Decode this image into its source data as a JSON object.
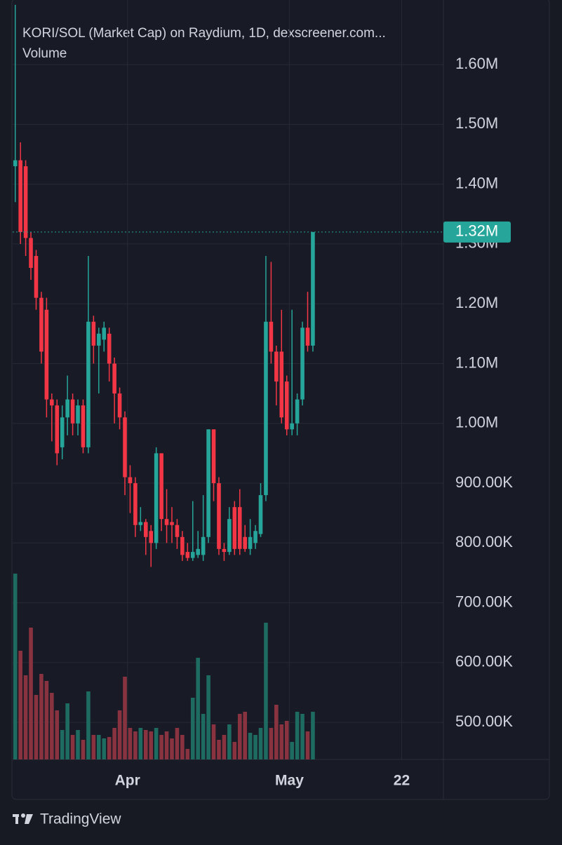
{
  "chart_data": {
    "type": "candlestick",
    "title": "KORI/SOL (Market Cap) on Raydium, 1D, dexscreener.com...",
    "subtitle": "Volume",
    "brand": "TradingView",
    "categories": [
      null,
      null,
      null,
      null,
      null,
      null,
      null,
      null,
      null,
      null,
      null,
      null,
      null,
      null,
      null,
      null,
      null,
      null,
      null,
      null,
      null,
      null,
      null,
      null,
      null,
      null,
      null,
      null,
      null,
      null,
      null,
      null,
      null,
      null,
      null,
      null,
      null,
      null,
      null,
      null,
      null,
      null,
      null,
      null,
      null,
      null,
      null,
      null,
      null,
      null,
      null,
      null,
      null,
      null,
      null,
      null,
      null,
      null
    ],
    "open": [
      1430000,
      1440000,
      1430000,
      1310000,
      1280000,
      1210000,
      1190000,
      1040000,
      1030000,
      960000,
      1010000,
      1040000,
      1000000,
      1030000,
      960000,
      1170000,
      1130000,
      1140000,
      1150000,
      1100000,
      1050000,
      1010000,
      910000,
      900000,
      830000,
      835000,
      820000,
      800000,
      950000,
      840000,
      835000,
      830000,
      810000,
      785000,
      775000,
      780000,
      780000,
      810000,
      990000,
      900000,
      790000,
      785000,
      860000,
      860000,
      810000,
      790000,
      800000,
      815000,
      880000,
      1170000,
      1120000,
      1120000,
      1070000,
      990000,
      1000000,
      1040000,
      1160000,
      1130000
    ],
    "high": [
      1700000,
      1470000,
      1440000,
      1320000,
      1290000,
      1220000,
      1210000,
      1050000,
      1040000,
      1030000,
      1080000,
      1050000,
      1040000,
      1040000,
      1280000,
      1180000,
      1160000,
      1170000,
      1160000,
      1110000,
      1060000,
      1020000,
      930000,
      910000,
      860000,
      840000,
      830000,
      960000,
      950000,
      890000,
      860000,
      840000,
      820000,
      800000,
      870000,
      820000,
      880000,
      990000,
      990000,
      910000,
      800000,
      860000,
      870000,
      890000,
      830000,
      840000,
      830000,
      900000,
      1280000,
      1270000,
      1130000,
      1190000,
      1080000,
      1190000,
      1050000,
      1170000,
      1220000,
      1320000
    ],
    "low": [
      1370000,
      1300000,
      1280000,
      1240000,
      1190000,
      1100000,
      1010000,
      970000,
      930000,
      940000,
      980000,
      980000,
      980000,
      950000,
      950000,
      1100000,
      1050000,
      1120000,
      1070000,
      1000000,
      990000,
      880000,
      850000,
      810000,
      820000,
      780000,
      760000,
      790000,
      820000,
      800000,
      800000,
      790000,
      770000,
      770000,
      770000,
      775000,
      770000,
      800000,
      870000,
      780000,
      770000,
      780000,
      780000,
      780000,
      785000,
      780000,
      790000,
      810000,
      870000,
      1100000,
      1030000,
      1000000,
      980000,
      980000,
      980000,
      1030000,
      1120000,
      1120000
    ],
    "close": [
      1440000,
      1320000,
      1310000,
      1260000,
      1210000,
      1120000,
      1040000,
      1030000,
      950000,
      1010000,
      1040000,
      1000000,
      1030000,
      960000,
      1170000,
      1130000,
      1150000,
      1160000,
      1100000,
      1050000,
      1010000,
      910000,
      900000,
      830000,
      835000,
      810000,
      800000,
      950000,
      840000,
      830000,
      830000,
      810000,
      780000,
      775000,
      785000,
      790000,
      810000,
      990000,
      900000,
      790000,
      785000,
      840000,
      790000,
      790000,
      790000,
      810000,
      820000,
      880000,
      1170000,
      1120000,
      1070000,
      1010000,
      990000,
      1000000,
      1040000,
      1160000,
      1130000,
      1320000
    ],
    "volume": [
      265,
      155,
      120,
      188,
      92,
      122,
      112,
      95,
      70,
      42,
      80,
      35,
      42,
      28,
      97,
      35,
      35,
      30,
      32,
      45,
      70,
      118,
      45,
      40,
      45,
      42,
      40,
      45,
      35,
      40,
      30,
      45,
      35,
      15,
      88,
      145,
      65,
      120,
      50,
      28,
      35,
      50,
      25,
      65,
      68,
      38,
      35,
      45,
      195,
      45,
      78,
      50,
      55,
      25,
      68,
      65,
      40,
      68
    ],
    "up_color": "#26a69a",
    "down_color": "#f23645",
    "volume_up_color": "#1e6b62",
    "volume_down_color": "#8a3340",
    "last_label": "1.32M",
    "xlim": [
      -0.5,
      82
    ],
    "xticks": [
      {
        "value": 21.5,
        "label": "Apr"
      },
      {
        "value": 52.5,
        "label": "May"
      },
      {
        "value": 74,
        "label": "22"
      }
    ],
    "ylim": [
      438000,
      1708000
    ],
    "yticks": [
      {
        "value": 1600000,
        "label": "1.60M"
      },
      {
        "value": 1500000,
        "label": "1.50M"
      },
      {
        "value": 1400000,
        "label": "1.40M"
      },
      {
        "value": 1300000,
        "label": "1.30M"
      },
      {
        "value": 1200000,
        "label": "1.20M"
      },
      {
        "value": 1100000,
        "label": "1.10M"
      },
      {
        "value": 1000000,
        "label": "1.00M"
      },
      {
        "value": 900000,
        "label": "900.00K"
      },
      {
        "value": 800000,
        "label": "800.00K"
      },
      {
        "value": 700000,
        "label": "700.00K"
      },
      {
        "value": 600000,
        "label": "600.00K"
      },
      {
        "value": 500000,
        "label": "500.00K"
      }
    ],
    "grid": true
  }
}
